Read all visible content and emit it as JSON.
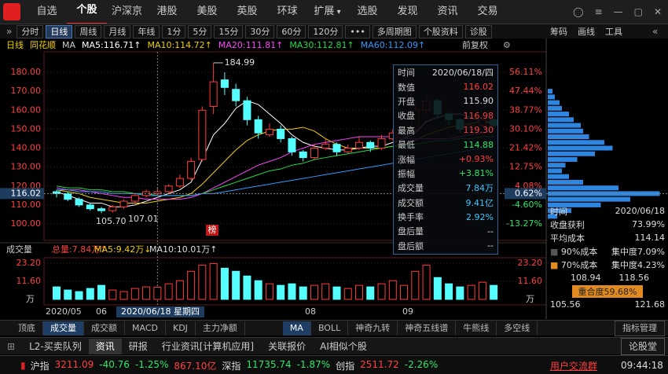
{
  "nav": {
    "tabs": [
      "自选",
      "个股",
      "沪深京",
      "港股",
      "美股",
      "英股",
      "环球",
      "扩展",
      "选股",
      "发现",
      "资讯",
      "交易"
    ]
  },
  "toolbar": {
    "left": [
      "分时",
      "日线",
      "周线",
      "月线",
      "年线",
      "1分",
      "5分",
      "15分",
      "30分",
      "60分",
      "120分",
      "•••",
      "多周期图",
      "个股资料",
      "诊股"
    ],
    "right": [
      "筹码",
      "画线",
      "工具"
    ]
  },
  "info": {
    "period": "日线",
    "brand": "同花顺",
    "indicator": "MA",
    "ma_labels": [
      "MA5:116.71↑",
      "MA10:114.72↑",
      "MA20:111.81↑",
      "MA30:112.81↑",
      "MA60:112.09↑"
    ],
    "adjust": "前复权"
  },
  "kline": {
    "price_ticks": [
      {
        "value": 180,
        "label": "180.00"
      },
      {
        "value": 170,
        "label": "170.00"
      },
      {
        "value": 160,
        "label": "160.00"
      },
      {
        "value": 150,
        "label": "150.00"
      },
      {
        "value": 140,
        "label": "140.00"
      },
      {
        "value": 130,
        "label": "130.00"
      },
      {
        "value": 120,
        "label": "120.00"
      },
      {
        "value": 110,
        "label": "110.00"
      },
      {
        "value": 100,
        "label": "100.00"
      }
    ],
    "pct_labels": [
      "56.11%",
      "47.44%",
      "38.77%",
      "30.10%",
      "21.42%",
      "12.75%",
      "4.08%",
      "-4.60%",
      "-13.27%"
    ],
    "current": {
      "value": 116.02,
      "label": "116.02",
      "pct": "0.62%"
    },
    "high_note": "184.99",
    "low_notes": [
      "105.70",
      "107.01"
    ],
    "badge": "榜",
    "up_color": "#ff3c3c",
    "down_color": "#54ffff",
    "candles": [
      {
        "o": 117,
        "h": 118,
        "l": 114,
        "c": 116
      },
      {
        "o": 116,
        "h": 117,
        "l": 112,
        "c": 113
      },
      {
        "o": 113,
        "h": 114,
        "l": 109,
        "c": 110
      },
      {
        "o": 110,
        "h": 111,
        "l": 107,
        "c": 108
      },
      {
        "o": 108,
        "h": 109,
        "l": 105.7,
        "c": 107
      },
      {
        "o": 107,
        "h": 110,
        "l": 106,
        "c": 109
      },
      {
        "o": 109,
        "h": 113,
        "l": 108,
        "c": 112
      },
      {
        "o": 112,
        "h": 116,
        "l": 111,
        "c": 115
      },
      {
        "o": 115,
        "h": 118,
        "l": 114,
        "c": 117
      },
      {
        "o": 115.9,
        "h": 119.3,
        "l": 114.88,
        "c": 116.98
      },
      {
        "o": 117,
        "h": 121,
        "l": 116,
        "c": 120
      },
      {
        "o": 120,
        "h": 126,
        "l": 119,
        "c": 124
      },
      {
        "o": 124,
        "h": 135,
        "l": 123,
        "c": 133
      },
      {
        "o": 134,
        "h": 162,
        "l": 133,
        "c": 160
      },
      {
        "o": 162,
        "h": 184.99,
        "l": 158,
        "c": 175
      },
      {
        "o": 176,
        "h": 180,
        "l": 168,
        "c": 172
      },
      {
        "o": 171,
        "h": 174,
        "l": 162,
        "c": 165
      },
      {
        "o": 165,
        "h": 167,
        "l": 152,
        "c": 155
      },
      {
        "o": 155,
        "h": 157,
        "l": 145,
        "c": 148
      },
      {
        "o": 147,
        "h": 153,
        "l": 146,
        "c": 150
      },
      {
        "o": 150,
        "h": 152,
        "l": 143,
        "c": 145
      },
      {
        "o": 145,
        "h": 146,
        "l": 136,
        "c": 138
      },
      {
        "o": 138,
        "h": 139,
        "l": 133,
        "c": 135
      },
      {
        "o": 135,
        "h": 142,
        "l": 134,
        "c": 140
      },
      {
        "o": 140,
        "h": 145,
        "l": 139,
        "c": 142
      },
      {
        "o": 142,
        "h": 143,
        "l": 136,
        "c": 138
      },
      {
        "o": 138,
        "h": 142,
        "l": 137,
        "c": 140
      },
      {
        "o": 140,
        "h": 146,
        "l": 139,
        "c": 143
      },
      {
        "o": 143,
        "h": 144,
        "l": 138,
        "c": 140
      },
      {
        "o": 140,
        "h": 147,
        "l": 139,
        "c": 145
      },
      {
        "o": 145,
        "h": 150,
        "l": 144,
        "c": 148
      },
      {
        "o": 148,
        "h": 152,
        "l": 146,
        "c": 150
      },
      {
        "o": 150,
        "h": 163,
        "l": 149,
        "c": 160
      },
      {
        "o": 160,
        "h": 168,
        "l": 158,
        "c": 165
      },
      {
        "o": 165,
        "h": 166,
        "l": 156,
        "c": 158
      },
      {
        "o": 158,
        "h": 159,
        "l": 152,
        "c": 155
      },
      {
        "o": 155,
        "h": 156,
        "l": 148,
        "c": 150
      },
      {
        "o": 150,
        "h": 154,
        "l": 149,
        "c": 152
      },
      {
        "o": 152,
        "h": 157,
        "l": 151,
        "c": 155
      },
      {
        "o": 155,
        "h": 156,
        "l": 150,
        "c": 152
      }
    ],
    "ma": [
      {
        "color": "#ffffff",
        "values": [
          117,
          115,
          113,
          111,
          111,
          109,
          109,
          110,
          112,
          114,
          116,
          118,
          122,
          134,
          147,
          153,
          161,
          165,
          163,
          158,
          153,
          147,
          143,
          141,
          140,
          139,
          139,
          140,
          141,
          141,
          143,
          145,
          148,
          154,
          156,
          158,
          158,
          156,
          154,
          153
        ]
      },
      {
        "color": "#f0d000",
        "values": [
          118,
          117,
          116,
          114,
          113,
          112,
          111,
          111,
          111,
          112,
          113,
          114,
          116,
          121,
          127,
          133,
          139,
          144,
          147,
          149,
          150,
          150,
          151,
          149,
          145,
          142,
          140,
          140,
          140,
          140,
          141,
          142,
          144,
          147,
          149,
          151,
          152,
          153,
          154,
          154
        ]
      },
      {
        "color": "#ff44ff",
        "values": [
          119,
          118,
          118,
          117,
          116,
          115,
          114,
          114,
          113,
          113,
          113,
          113,
          114,
          116,
          119,
          122,
          125,
          128,
          131,
          133,
          135,
          138,
          140,
          142,
          143,
          144,
          145,
          146,
          146,
          146,
          146,
          145,
          145,
          145,
          145,
          145,
          146,
          147,
          148,
          149
        ]
      },
      {
        "color": "#22dd44",
        "values": [
          120,
          119,
          119,
          118,
          118,
          117,
          117,
          116,
          116,
          115,
          115,
          115,
          115,
          116,
          118,
          120,
          122,
          124,
          126,
          128,
          129,
          131,
          132,
          134,
          135,
          136,
          137,
          138,
          139,
          140,
          141,
          141,
          142,
          143,
          144,
          144,
          145,
          145,
          146,
          146
        ]
      },
      {
        "color": "#3399ff",
        "values": [
          118,
          118,
          117,
          117,
          117,
          116,
          116,
          116,
          115,
          115,
          115,
          115,
          115,
          116,
          116,
          117,
          118,
          119,
          120,
          121,
          122,
          123,
          124,
          125,
          126,
          127,
          128,
          129,
          130,
          131,
          132,
          133,
          134,
          135,
          136,
          137,
          138,
          139,
          140,
          141
        ]
      }
    ],
    "x_labels": [
      "2020/05",
      "06",
      "08",
      "09"
    ],
    "crosshair_date": "2020/06/18 星期四"
  },
  "popup": {
    "rows": [
      [
        "时间",
        "2020/06/18/四"
      ],
      [
        "数值",
        "116.02"
      ],
      [
        "开盘",
        "115.90"
      ],
      [
        "收盘",
        "116.98"
      ],
      [
        "最高",
        "119.30"
      ],
      [
        "最低",
        "114.88"
      ],
      [
        "涨幅",
        "+0.93%"
      ],
      [
        "振幅",
        "+3.81%"
      ],
      [
        "成交量",
        "7.84万"
      ],
      [
        "成交额",
        "9.41亿"
      ],
      [
        "换手率",
        "2.92%"
      ],
      [
        "盘后量",
        "--"
      ],
      [
        "盘后额",
        "--"
      ]
    ]
  },
  "volume": {
    "header": [
      "成交量",
      "总量:7.84万↑",
      "MA5:9.42万↓",
      "MA10:10.01万↑"
    ],
    "ticks": [
      {
        "value": 23.2,
        "label": "23.20"
      },
      {
        "value": 11.6,
        "label": "11.60"
      }
    ],
    "unit": "万",
    "values": [
      8,
      6,
      5,
      7,
      9,
      6,
      5,
      7,
      8,
      7.84,
      10,
      12,
      18,
      22,
      23,
      20,
      18,
      15,
      12,
      10,
      9,
      10,
      8,
      9,
      10,
      8,
      7,
      9,
      8,
      10,
      12,
      9,
      18,
      22,
      14,
      10,
      8,
      9,
      11,
      9
    ]
  },
  "chips": {
    "color": "#2f86e0",
    "levels": [
      {
        "price": 104,
        "amount": 8
      },
      {
        "price": 107,
        "amount": 20
      },
      {
        "price": 110,
        "amount": 45
      },
      {
        "price": 113,
        "amount": 70
      },
      {
        "price": 116,
        "amount": 95
      },
      {
        "price": 119,
        "amount": 60
      },
      {
        "price": 122,
        "amount": 30
      },
      {
        "price": 125,
        "amount": 18
      },
      {
        "price": 128,
        "amount": 12
      },
      {
        "price": 131,
        "amount": 15
      },
      {
        "price": 134,
        "amount": 25
      },
      {
        "price": 137,
        "amount": 40
      },
      {
        "price": 140,
        "amount": 55
      },
      {
        "price": 143,
        "amount": 48
      },
      {
        "price": 146,
        "amount": 35
      },
      {
        "price": 149,
        "amount": 30
      },
      {
        "price": 152,
        "amount": 28
      },
      {
        "price": 155,
        "amount": 22
      },
      {
        "price": 158,
        "amount": 18
      },
      {
        "price": 161,
        "amount": 12
      },
      {
        "price": 164,
        "amount": 10
      },
      {
        "price": 167,
        "amount": 6
      },
      {
        "price": 170,
        "amount": 4
      }
    ],
    "time_label": "时间",
    "time": "2020/06/18",
    "profit_label": "收盘获利",
    "profit": "73.99%",
    "avg_label": "平均成本",
    "avg": "114.14",
    "c90_label": "90%成本",
    "c90_conc": "集中度7.09%",
    "c70_label": "70%成本",
    "c70_conc": "集中度4.23%",
    "range_a": [
      "108.94",
      "118.56"
    ],
    "overlap": "重合度59.68%",
    "range_b": [
      "105.56",
      "121.68"
    ]
  },
  "indicators": {
    "left": [
      "顶底",
      "成交量",
      "成交额",
      "MACD",
      "KDJ",
      "主力净额"
    ],
    "mid": [
      "MA",
      "BOLL",
      "神奇九转",
      "神奇五线谱",
      "牛熊线",
      "多空线"
    ],
    "manage": "指标管理"
  },
  "bottom_tabs": {
    "items": [
      "L2-买卖队列",
      "资讯",
      "研报",
      "行业资讯[计算机应用]",
      "关联报价",
      "AI相似个股"
    ],
    "right": "论股堂"
  },
  "status": {
    "items": [
      "沪指",
      "3211.09",
      "-40.76",
      "-1.25%",
      "867.10亿",
      "深指",
      "11735.74",
      "-1.87%",
      "创指",
      "2511.72",
      "-2.26%"
    ],
    "group": "用户交流群",
    "time": "09:44:18"
  }
}
